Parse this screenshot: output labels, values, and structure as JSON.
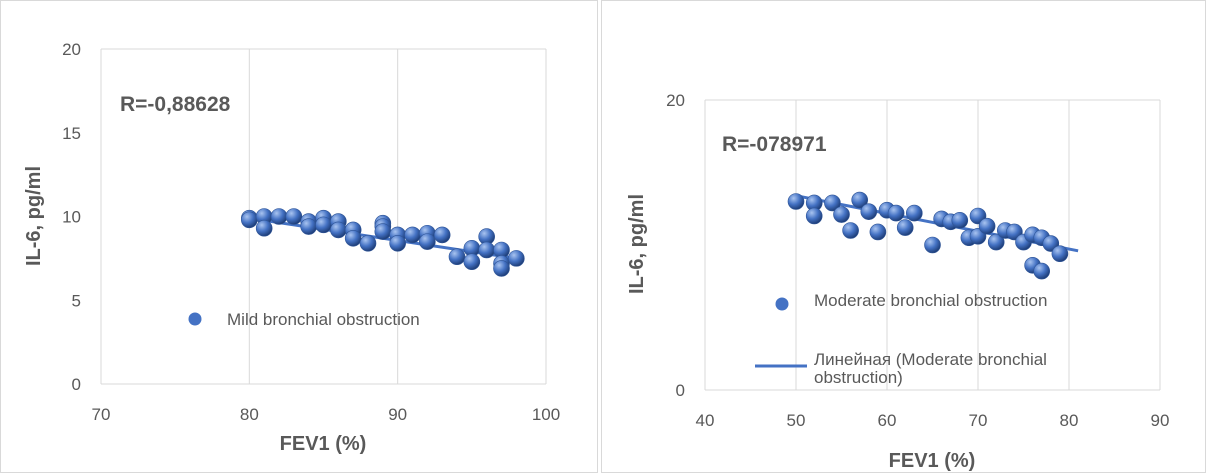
{
  "chart_data": [
    {
      "type": "scatter",
      "annotation": "R=-0,88628",
      "xlabel": "FEV1  (%)",
      "ylabel": "IL-6, pg/ml",
      "xlim": [
        70,
        100
      ],
      "ylim": [
        0,
        20
      ],
      "xticks": [
        "70",
        "80",
        "90",
        "100"
      ],
      "yticks": [
        "0",
        "5",
        "10",
        "15",
        "20"
      ],
      "grid": "vertical",
      "legend": "middle-left",
      "marker_color": "#4472c4",
      "trend_color": "#4472c4",
      "trendline": {
        "x": [
          80,
          98
        ],
        "y": [
          9.9,
          7.5
        ]
      },
      "series": [
        {
          "name": "Mild bronchial obstruction",
          "points": [
            [
              80,
              9.9
            ],
            [
              80,
              9.8
            ],
            [
              81,
              10.0
            ],
            [
              81,
              9.3
            ],
            [
              82,
              10.0
            ],
            [
              83,
              10.0
            ],
            [
              84,
              9.7
            ],
            [
              84,
              9.4
            ],
            [
              85,
              9.9
            ],
            [
              85,
              9.5
            ],
            [
              86,
              9.7
            ],
            [
              86,
              9.2
            ],
            [
              87,
              9.2
            ],
            [
              87,
              8.7
            ],
            [
              88,
              8.4
            ],
            [
              89,
              9.6
            ],
            [
              89,
              9.4
            ],
            [
              89,
              9.1
            ],
            [
              90,
              8.9
            ],
            [
              90,
              8.4
            ],
            [
              91,
              8.9
            ],
            [
              92,
              9.0
            ],
            [
              92,
              8.5
            ],
            [
              93,
              8.9
            ],
            [
              94,
              7.6
            ],
            [
              95,
              8.1
            ],
            [
              95,
              7.3
            ],
            [
              96,
              8.8
            ],
            [
              96,
              8.0
            ],
            [
              97,
              8.0
            ],
            [
              97,
              7.2
            ],
            [
              97,
              6.9
            ],
            [
              98,
              7.5
            ]
          ]
        }
      ]
    },
    {
      "type": "scatter",
      "annotation": "R=-078971",
      "xlabel": "FEV1 (%)",
      "ylabel": "IL-6, pg/ml",
      "xlim": [
        40,
        90
      ],
      "ylim": [
        0,
        20
      ],
      "xticks": [
        "40",
        "50",
        "60",
        "70",
        "80",
        "90"
      ],
      "yticks": [
        "0",
        "20"
      ],
      "grid": "vertical",
      "legend": "bottom-left",
      "marker_color": "#4472c4",
      "trend_color": "#4472c4",
      "trendline": {
        "x": [
          50,
          81
        ],
        "y": [
          13.4,
          9.6
        ]
      },
      "series": [
        {
          "name": "Moderate bronchial obstruction",
          "points": [
            [
              50,
              13.0
            ],
            [
              52,
              12.9
            ],
            [
              52,
              12.0
            ],
            [
              54,
              12.9
            ],
            [
              55,
              12.1
            ],
            [
              56,
              11.0
            ],
            [
              57,
              13.1
            ],
            [
              58,
              12.3
            ],
            [
              59,
              10.9
            ],
            [
              60,
              12.4
            ],
            [
              61,
              12.2
            ],
            [
              62,
              11.2
            ],
            [
              63,
              12.2
            ],
            [
              65,
              10.0
            ],
            [
              66,
              11.8
            ],
            [
              67,
              11.6
            ],
            [
              68,
              11.7
            ],
            [
              69,
              10.5
            ],
            [
              70,
              12.0
            ],
            [
              70,
              10.6
            ],
            [
              71,
              11.3
            ],
            [
              72,
              10.2
            ],
            [
              73,
              11.0
            ],
            [
              74,
              10.9
            ],
            [
              75,
              10.2
            ],
            [
              76,
              10.7
            ],
            [
              76,
              8.6
            ],
            [
              77,
              10.5
            ],
            [
              77,
              8.2
            ],
            [
              78,
              10.1
            ],
            [
              79,
              9.4
            ]
          ]
        },
        {
          "name": "Линейная (Moderate bronchial obstruction)"
        }
      ]
    }
  ]
}
